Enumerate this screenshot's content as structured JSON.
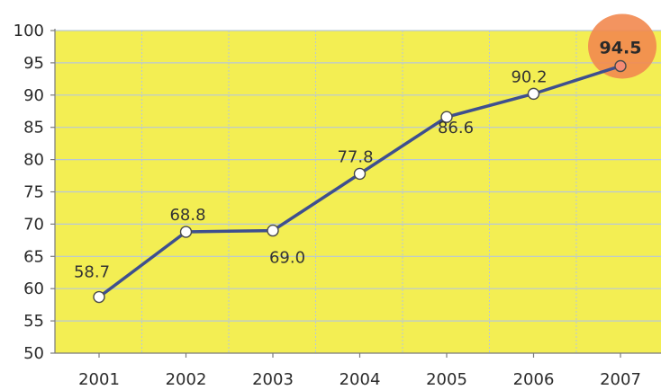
{
  "chart_data": {
    "type": "line",
    "title": "",
    "xlabel": "",
    "ylabel": "",
    "categories": [
      "2001",
      "2002",
      "2003",
      "2004",
      "2005",
      "2006",
      "2007"
    ],
    "series": [
      {
        "values": [
          58.7,
          68.8,
          69.0,
          77.8,
          86.6,
          90.2,
          94.5
        ]
      }
    ],
    "data_labels": [
      "58.7",
      "68.8",
      "69.0",
      "77.8",
      "86.6",
      "90.2",
      "94.5"
    ],
    "highlight_index": 6,
    "ylim": [
      50,
      100
    ],
    "y_ticks": [
      "50",
      "55",
      "60",
      "65",
      "70",
      "75",
      "80",
      "85",
      "90",
      "95",
      "100"
    ],
    "grid": true,
    "legend": "none",
    "colors": {
      "plot_background": "#f3ee53",
      "gridline": "#b7c7d9",
      "line": "#3e4f8f",
      "marker_fill": "#ffffff",
      "marker_stroke": "#4a4a4a",
      "highlight_marker_fill": "#f58b74",
      "highlight_bubble": "#f2884f"
    }
  }
}
